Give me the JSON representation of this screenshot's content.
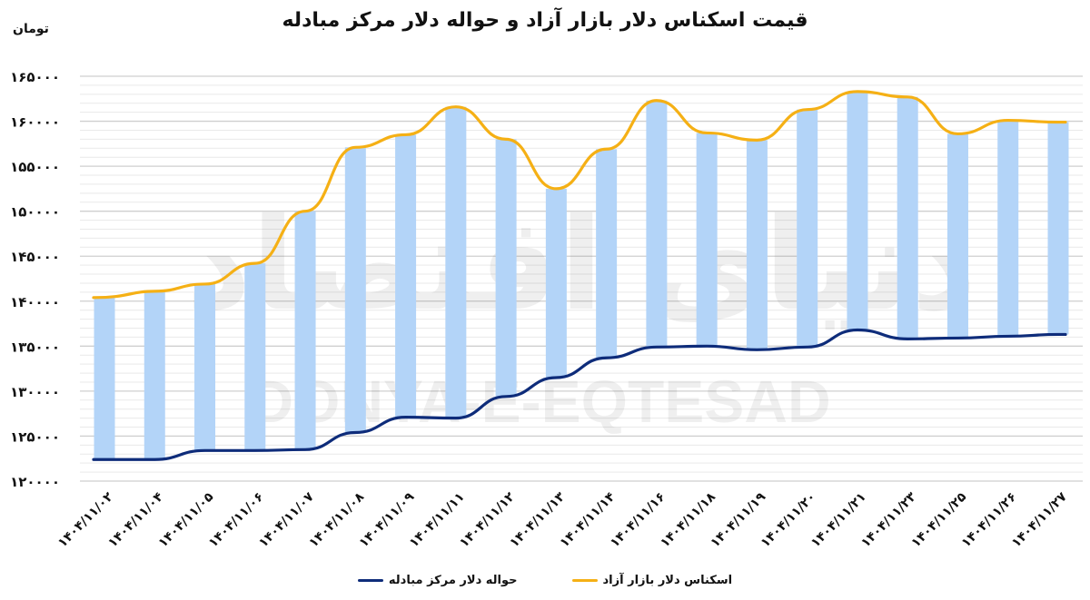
{
  "header": {
    "title": "قیمت اسکناس دلار بازار آزاد و حواله دلار مرکز مبادله",
    "unit_label": "تومان"
  },
  "watermark": {
    "latin": "DONYA-E-EQTESAD",
    "persian": "دنیای اقتصاد"
  },
  "legend": [
    {
      "label": "اسکناس دلار بازار آزاد",
      "color": "#F5B015"
    },
    {
      "label": "حواله دلار مرکز مبادله",
      "color": "#0E2C7A"
    }
  ],
  "colors": {
    "bar": "#B3D4F8",
    "free_market_line": "#F5B015",
    "exchange_center_line": "#0E2C7A",
    "grid_major": "#CFCFCF",
    "grid_minor": "#E9E9E9"
  },
  "chart_data": {
    "type": "line",
    "title": "قیمت اسکناس دلار بازار آزاد و حواله دلار مرکز مبادله",
    "xlabel": "",
    "ylabel": "تومان",
    "ylim": [
      120000,
      165000
    ],
    "y_ticks": [
      120000,
      125000,
      130000,
      135000,
      140000,
      145000,
      150000,
      155000,
      160000,
      165000
    ],
    "y_tick_labels": [
      "۱۲۰۰۰۰",
      "۱۲۵۰۰۰",
      "۱۳۰۰۰۰",
      "۱۳۵۰۰۰",
      "۱۴۰۰۰۰",
      "۱۴۵۰۰۰",
      "۱۵۰۰۰۰",
      "۱۵۵۰۰۰",
      "۱۶۰۰۰۰",
      "۱۶۵۰۰۰"
    ],
    "grid": true,
    "legend_position": "bottom",
    "categories": [
      "۱۴۰۴/۱۱/۰۲",
      "۱۴۰۴/۱۱/۰۴",
      "۱۴۰۴/۱۱/۰۵",
      "۱۴۰۴/۱۱/۰۶",
      "۱۴۰۴/۱۱/۰۷",
      "۱۴۰۴/۱۱/۰۸",
      "۱۴۰۴/۱۱/۰۹",
      "۱۴۰۴/۱۱/۱۱",
      "۱۴۰۴/۱۱/۱۲",
      "۱۴۰۴/۱۱/۱۳",
      "۱۴۰۴/۱۱/۱۴",
      "۱۴۰۴/۱۱/۱۶",
      "۱۴۰۴/۱۱/۱۸",
      "۱۴۰۴/۱۱/۱۹",
      "۱۴۰۴/۱۱/۲۰",
      "۱۴۰۴/۱۱/۲۱",
      "۱۴۰۴/۱۱/۲۳",
      "۱۴۰۴/۱۱/۲۵",
      "۱۴۰۴/۱۱/۲۶",
      "۱۴۰۴/۱۱/۲۷"
    ],
    "series": [
      {
        "name": "اسکناس دلار بازار آزاد",
        "color": "#F5B015",
        "values": [
          140400,
          141100,
          141900,
          144200,
          150000,
          157100,
          158500,
          161600,
          158000,
          152500,
          156900,
          162300,
          158700,
          157900,
          161300,
          163300,
          162700,
          158600,
          160100,
          159900
        ]
      },
      {
        "name": "حواله دلار مرکز مبادله",
        "color": "#0E2C7A",
        "values": [
          122400,
          122400,
          123400,
          123400,
          123500,
          125400,
          127100,
          127000,
          129400,
          131500,
          133700,
          134900,
          135000,
          134600,
          134900,
          136800,
          135800,
          135900,
          136100,
          136300
        ]
      }
    ],
    "bars": {
      "description": "floating range bars spanning from exchange-center rate to free-market rate",
      "color": "#B3D4F8"
    }
  }
}
